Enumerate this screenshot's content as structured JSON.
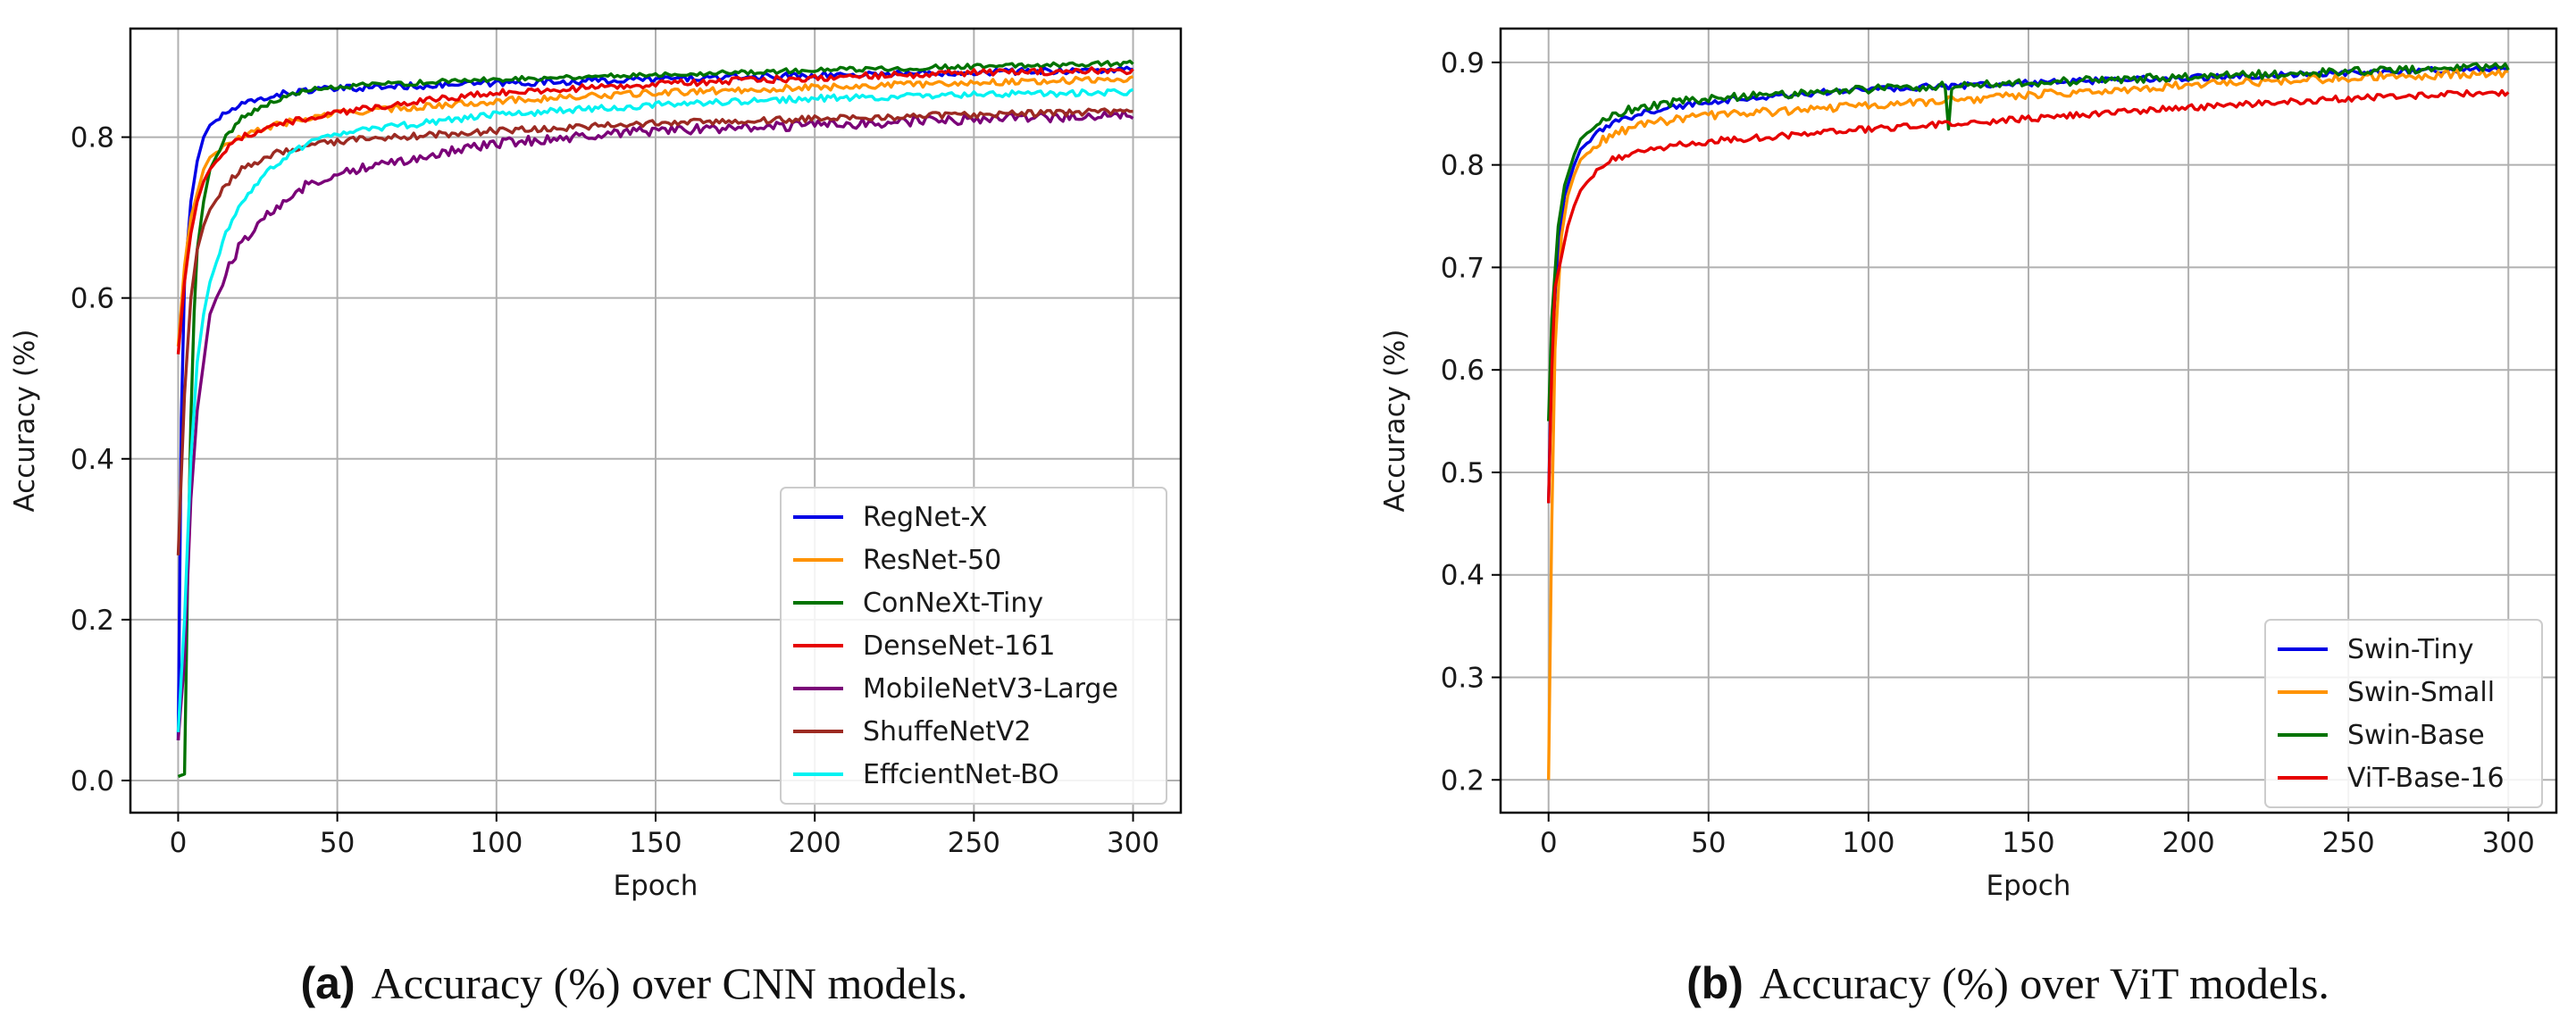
{
  "chart_data": [
    {
      "type": "line",
      "xlabel": "Epoch",
      "ylabel": "Accuracy (%)",
      "xlim": [
        -15,
        315
      ],
      "ylim": [
        -0.04,
        0.935
      ],
      "xticks": [
        0,
        50,
        100,
        150,
        200,
        250,
        300
      ],
      "yticks": [
        0.0,
        0.2,
        0.4,
        0.6,
        0.8
      ],
      "ytick_labels": [
        "0.0",
        "0.2",
        "0.4",
        "0.6",
        "0.8"
      ],
      "grid": true,
      "legend_position": "lower-right",
      "caption": {
        "label": "(a)",
        "text": "Accuracy (%) over CNN models."
      },
      "series": [
        {
          "name": "RegNet-X",
          "color": "#0000e6",
          "noise": 0.004,
          "points": [
            [
              0,
              0.05
            ],
            [
              1,
              0.45
            ],
            [
              2,
              0.62
            ],
            [
              4,
              0.72
            ],
            [
              6,
              0.77
            ],
            [
              8,
              0.8
            ],
            [
              10,
              0.815
            ],
            [
              15,
              0.83
            ],
            [
              20,
              0.84
            ],
            [
              30,
              0.852
            ],
            [
              40,
              0.858
            ],
            [
              60,
              0.862
            ],
            [
              100,
              0.867
            ],
            [
              150,
              0.872
            ],
            [
              200,
              0.877
            ],
            [
              250,
              0.881
            ],
            [
              300,
              0.884
            ]
          ]
        },
        {
          "name": "ResNet-50",
          "color": "#ff9300",
          "noise": 0.004,
          "points": [
            [
              0,
              0.54
            ],
            [
              2,
              0.64
            ],
            [
              4,
              0.7
            ],
            [
              6,
              0.73
            ],
            [
              8,
              0.76
            ],
            [
              10,
              0.775
            ],
            [
              15,
              0.79
            ],
            [
              20,
              0.8
            ],
            [
              30,
              0.815
            ],
            [
              50,
              0.83
            ],
            [
              100,
              0.845
            ],
            [
              150,
              0.855
            ],
            [
              200,
              0.862
            ],
            [
              250,
              0.868
            ],
            [
              300,
              0.872
            ]
          ]
        },
        {
          "name": "ConNeXt-Tiny",
          "color": "#007300",
          "noise": 0.003,
          "points": [
            [
              0,
              0.005
            ],
            [
              2,
              0.008
            ],
            [
              3,
              0.25
            ],
            [
              4,
              0.45
            ],
            [
              5,
              0.58
            ],
            [
              6,
              0.66
            ],
            [
              8,
              0.72
            ],
            [
              10,
              0.76
            ],
            [
              15,
              0.8
            ],
            [
              20,
              0.825
            ],
            [
              30,
              0.845
            ],
            [
              40,
              0.858
            ],
            [
              60,
              0.865
            ],
            [
              100,
              0.872
            ],
            [
              150,
              0.878
            ],
            [
              200,
              0.883
            ],
            [
              250,
              0.888
            ],
            [
              300,
              0.892
            ]
          ]
        },
        {
          "name": "DenseNet-161",
          "color": "#e60000",
          "noise": 0.004,
          "points": [
            [
              0,
              0.53
            ],
            [
              2,
              0.62
            ],
            [
              4,
              0.68
            ],
            [
              6,
              0.72
            ],
            [
              8,
              0.745
            ],
            [
              10,
              0.76
            ],
            [
              15,
              0.785
            ],
            [
              20,
              0.8
            ],
            [
              30,
              0.815
            ],
            [
              50,
              0.83
            ],
            [
              75,
              0.845
            ],
            [
              100,
              0.855
            ],
            [
              150,
              0.866
            ],
            [
              200,
              0.874
            ],
            [
              250,
              0.88
            ],
            [
              300,
              0.883
            ]
          ]
        },
        {
          "name": "MobileNetV3-Large",
          "color": "#7a0078",
          "noise": 0.006,
          "points": [
            [
              0,
              0.05
            ],
            [
              2,
              0.15
            ],
            [
              4,
              0.35
            ],
            [
              6,
              0.46
            ],
            [
              8,
              0.52
            ],
            [
              10,
              0.58
            ],
            [
              15,
              0.63
            ],
            [
              20,
              0.67
            ],
            [
              30,
              0.71
            ],
            [
              40,
              0.74
            ],
            [
              50,
              0.755
            ],
            [
              75,
              0.775
            ],
            [
              100,
              0.792
            ],
            [
              150,
              0.808
            ],
            [
              200,
              0.815
            ],
            [
              250,
              0.822
            ],
            [
              300,
              0.828
            ]
          ]
        },
        {
          "name": "ShuffeNetV2",
          "color": "#9c2a22",
          "noise": 0.004,
          "points": [
            [
              0,
              0.28
            ],
            [
              2,
              0.48
            ],
            [
              4,
              0.6
            ],
            [
              6,
              0.66
            ],
            [
              8,
              0.69
            ],
            [
              10,
              0.71
            ],
            [
              15,
              0.74
            ],
            [
              20,
              0.76
            ],
            [
              30,
              0.78
            ],
            [
              50,
              0.795
            ],
            [
              100,
              0.808
            ],
            [
              150,
              0.817
            ],
            [
              200,
              0.823
            ],
            [
              250,
              0.828
            ],
            [
              300,
              0.832
            ]
          ]
        },
        {
          "name": "EffcientNet-BO",
          "color": "#00f2f2",
          "noise": 0.004,
          "points": [
            [
              0,
              0.06
            ],
            [
              2,
              0.2
            ],
            [
              4,
              0.4
            ],
            [
              6,
              0.52
            ],
            [
              8,
              0.58
            ],
            [
              10,
              0.62
            ],
            [
              15,
              0.68
            ],
            [
              20,
              0.72
            ],
            [
              30,
              0.765
            ],
            [
              40,
              0.79
            ],
            [
              50,
              0.805
            ],
            [
              100,
              0.828
            ],
            [
              150,
              0.84
            ],
            [
              200,
              0.848
            ],
            [
              250,
              0.853
            ],
            [
              300,
              0.856
            ]
          ]
        }
      ]
    },
    {
      "type": "line",
      "xlabel": "Epoch",
      "ylabel": "Accuracy (%)",
      "xlim": [
        -15,
        315
      ],
      "ylim": [
        0.168,
        0.933
      ],
      "xticks": [
        0,
        50,
        100,
        150,
        200,
        250,
        300
      ],
      "yticks": [
        0.2,
        0.3,
        0.4,
        0.5,
        0.6,
        0.7,
        0.8,
        0.9
      ],
      "ytick_labels": [
        "0.2",
        "0.3",
        "0.4",
        "0.5",
        "0.6",
        "0.7",
        "0.8",
        "0.9"
      ],
      "grid": true,
      "legend_position": "lower-right",
      "caption": {
        "label": "(b)",
        "text": "Accuracy (%) over ViT models."
      },
      "series": [
        {
          "name": "Swin-Tiny",
          "color": "#0000e6",
          "noise": 0.003,
          "points": [
            [
              0,
              0.47
            ],
            [
              1,
              0.62
            ],
            [
              3,
              0.72
            ],
            [
              5,
              0.77
            ],
            [
              8,
              0.8
            ],
            [
              10,
              0.815
            ],
            [
              15,
              0.83
            ],
            [
              20,
              0.84
            ],
            [
              30,
              0.852
            ],
            [
              50,
              0.862
            ],
            [
              100,
              0.874
            ],
            [
              150,
              0.88
            ],
            [
              200,
              0.885
            ],
            [
              250,
              0.89
            ],
            [
              300,
              0.894
            ]
          ]
        },
        {
          "name": "Swin-Small",
          "color": "#ff9300",
          "noise": 0.004,
          "points": [
            [
              0,
              0.2
            ],
            [
              1,
              0.45
            ],
            [
              2,
              0.62
            ],
            [
              4,
              0.73
            ],
            [
              6,
              0.77
            ],
            [
              8,
              0.79
            ],
            [
              10,
              0.805
            ],
            [
              15,
              0.82
            ],
            [
              20,
              0.83
            ],
            [
              30,
              0.84
            ],
            [
              50,
              0.848
            ],
            [
              100,
              0.858
            ],
            [
              150,
              0.868
            ],
            [
              200,
              0.878
            ],
            [
              250,
              0.885
            ],
            [
              300,
              0.89
            ]
          ]
        },
        {
          "name": "Swin-Base",
          "color": "#007300",
          "noise": 0.004,
          "dips": [
            [
              125,
              0.835
            ]
          ],
          "points": [
            [
              0,
              0.55
            ],
            [
              1,
              0.65
            ],
            [
              3,
              0.74
            ],
            [
              5,
              0.78
            ],
            [
              8,
              0.81
            ],
            [
              10,
              0.825
            ],
            [
              15,
              0.84
            ],
            [
              20,
              0.85
            ],
            [
              30,
              0.857
            ],
            [
              50,
              0.865
            ],
            [
              100,
              0.874
            ],
            [
              150,
              0.88
            ],
            [
              200,
              0.886
            ],
            [
              250,
              0.891
            ],
            [
              300,
              0.896
            ]
          ]
        },
        {
          "name": "ViT-Base-16",
          "color": "#e60000",
          "noise": 0.003,
          "points": [
            [
              0,
              0.47
            ],
            [
              1,
              0.6
            ],
            [
              2,
              0.68
            ],
            [
              4,
              0.71
            ],
            [
              6,
              0.74
            ],
            [
              8,
              0.76
            ],
            [
              10,
              0.775
            ],
            [
              15,
              0.795
            ],
            [
              20,
              0.805
            ],
            [
              30,
              0.815
            ],
            [
              50,
              0.823
            ],
            [
              100,
              0.835
            ],
            [
              150,
              0.845
            ],
            [
              200,
              0.856
            ],
            [
              250,
              0.865
            ],
            [
              300,
              0.871
            ]
          ]
        }
      ]
    }
  ]
}
